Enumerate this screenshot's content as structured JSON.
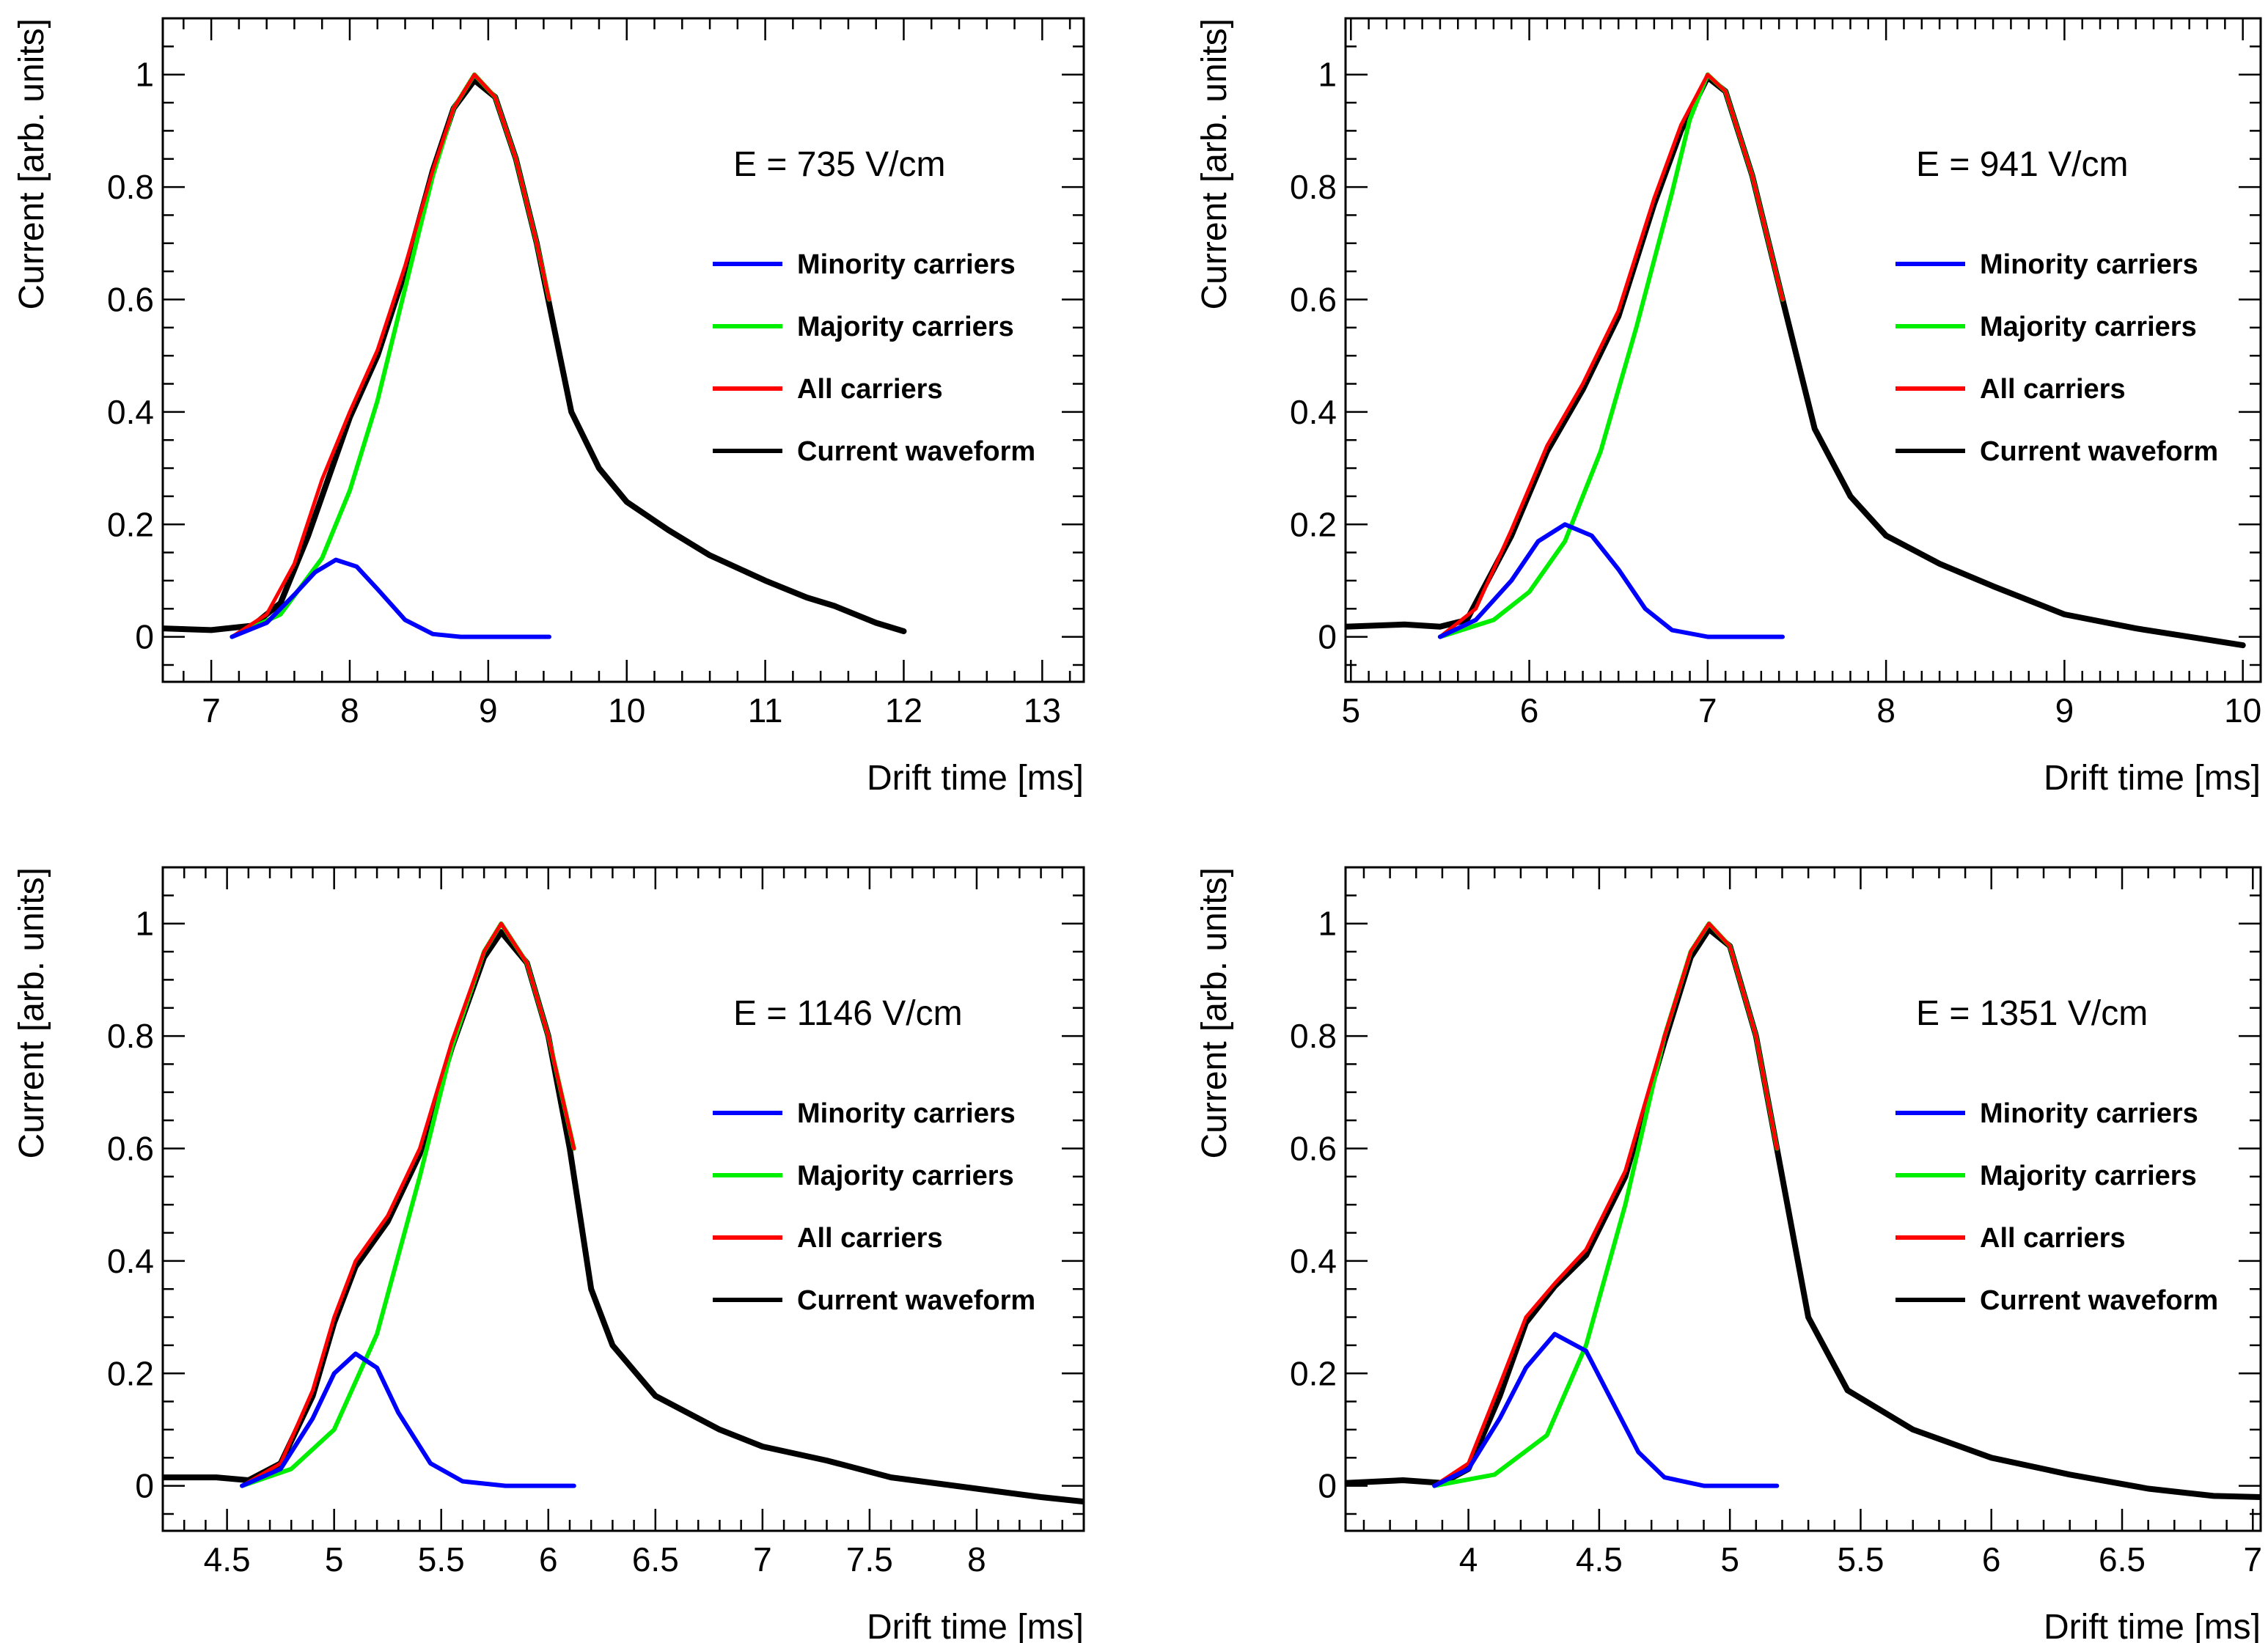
{
  "chart_data": [
    {
      "type": "line",
      "annotation": "E = 735 V/cm",
      "xlabel": "Drift time [ms]",
      "ylabel": "Current [arb. units]",
      "xlim": [
        6.65,
        13.3
      ],
      "ylim": [
        -0.08,
        1.1
      ],
      "x_ticks": [
        7,
        8,
        9,
        10,
        11,
        12,
        13
      ],
      "x_tick_labels": [
        "7",
        "8",
        "9",
        "10",
        "11",
        "12",
        "13"
      ],
      "y_ticks": [
        0,
        0.2,
        0.4,
        0.6,
        0.8,
        1
      ],
      "y_tick_labels": [
        "0",
        "0.2",
        "0.4",
        "0.6",
        "0.8",
        "1"
      ],
      "series": [
        {
          "name": "Minority carriers",
          "color": "#0000ff",
          "x": [
            7.15,
            7.4,
            7.6,
            7.75,
            7.9,
            8.05,
            8.2,
            8.4,
            8.6,
            8.8,
            9.0,
            9.2,
            9.44
          ],
          "y": [
            0.0,
            0.025,
            0.075,
            0.115,
            0.137,
            0.125,
            0.085,
            0.03,
            0.005,
            0.0,
            0.0,
            0.0,
            0.0
          ]
        },
        {
          "name": "Majority carriers",
          "color": "#00ee00",
          "x": [
            7.15,
            7.5,
            7.8,
            8.0,
            8.2,
            8.4,
            8.6,
            8.75,
            8.9,
            9.05,
            9.2,
            9.35,
            9.44
          ],
          "y": [
            0.0,
            0.04,
            0.14,
            0.26,
            0.42,
            0.62,
            0.82,
            0.94,
            1.0,
            0.96,
            0.85,
            0.7,
            0.6
          ]
        },
        {
          "name": "All carriers",
          "color": "#ff0000",
          "x": [
            7.15,
            7.4,
            7.6,
            7.8,
            8.0,
            8.2,
            8.4,
            8.6,
            8.75,
            8.9,
            9.05,
            9.2,
            9.35,
            9.44
          ],
          "y": [
            0.0,
            0.04,
            0.13,
            0.28,
            0.4,
            0.51,
            0.66,
            0.83,
            0.94,
            1.0,
            0.96,
            0.85,
            0.7,
            0.6
          ]
        },
        {
          "name": "Current waveform",
          "color": "#000000",
          "x": [
            6.65,
            7.0,
            7.3,
            7.5,
            7.7,
            8.0,
            8.2,
            8.4,
            8.6,
            8.75,
            8.9,
            9.05,
            9.2,
            9.35,
            9.45,
            9.6,
            9.8,
            10.0,
            10.3,
            10.6,
            11.0,
            11.3,
            11.5,
            11.8,
            12.0
          ],
          "y": [
            0.015,
            0.012,
            0.02,
            0.06,
            0.18,
            0.39,
            0.5,
            0.65,
            0.83,
            0.94,
            0.99,
            0.96,
            0.85,
            0.7,
            0.58,
            0.4,
            0.3,
            0.24,
            0.19,
            0.145,
            0.1,
            0.07,
            0.055,
            0.025,
            0.01
          ]
        }
      ]
    },
    {
      "type": "line",
      "annotation": "E = 941 V/cm",
      "xlabel": "Drift time [ms]",
      "ylabel": "Current [arb. units]",
      "xlim": [
        4.97,
        10.1
      ],
      "ylim": [
        -0.08,
        1.1
      ],
      "x_ticks": [
        5,
        6,
        7,
        8,
        9,
        10
      ],
      "x_tick_labels": [
        "5",
        "6",
        "7",
        "8",
        "9",
        "10"
      ],
      "y_ticks": [
        0,
        0.2,
        0.4,
        0.6,
        0.8,
        1
      ],
      "y_tick_labels": [
        "0",
        "0.2",
        "0.4",
        "0.6",
        "0.8",
        "1"
      ],
      "series": [
        {
          "name": "Minority carriers",
          "color": "#0000ff",
          "x": [
            5.5,
            5.7,
            5.9,
            6.05,
            6.2,
            6.35,
            6.5,
            6.65,
            6.8,
            7.0,
            7.2,
            7.42
          ],
          "y": [
            0.0,
            0.03,
            0.1,
            0.17,
            0.2,
            0.18,
            0.12,
            0.05,
            0.012,
            0.0,
            0.0,
            0.0
          ]
        },
        {
          "name": "Majority carriers",
          "color": "#00ee00",
          "x": [
            5.5,
            5.8,
            6.0,
            6.2,
            6.4,
            6.6,
            6.8,
            6.9,
            7.0,
            7.1,
            7.25,
            7.42
          ],
          "y": [
            0.0,
            0.03,
            0.08,
            0.17,
            0.33,
            0.55,
            0.79,
            0.92,
            1.0,
            0.97,
            0.82,
            0.6
          ]
        },
        {
          "name": "All carriers",
          "color": "#ff0000",
          "x": [
            5.5,
            5.7,
            5.9,
            6.1,
            6.3,
            6.5,
            6.7,
            6.85,
            7.0,
            7.1,
            7.25,
            7.42
          ],
          "y": [
            0.0,
            0.05,
            0.19,
            0.34,
            0.45,
            0.58,
            0.78,
            0.91,
            1.0,
            0.97,
            0.82,
            0.6
          ]
        },
        {
          "name": "Current waveform",
          "color": "#000000",
          "x": [
            4.97,
            5.3,
            5.5,
            5.65,
            5.9,
            6.1,
            6.3,
            6.5,
            6.7,
            6.85,
            7.0,
            7.1,
            7.25,
            7.42,
            7.6,
            7.8,
            8.0,
            8.3,
            8.6,
            9.0,
            9.4,
            9.7,
            10.0
          ],
          "y": [
            0.018,
            0.022,
            0.018,
            0.03,
            0.18,
            0.33,
            0.44,
            0.57,
            0.77,
            0.9,
            0.995,
            0.97,
            0.82,
            0.6,
            0.37,
            0.25,
            0.18,
            0.13,
            0.09,
            0.04,
            0.015,
            0.0,
            -0.015
          ]
        }
      ]
    },
    {
      "type": "line",
      "annotation": "E = 1146 V/cm",
      "xlabel": "Drift time [ms]",
      "ylabel": "Current [arb. units]",
      "xlim": [
        4.2,
        8.5
      ],
      "ylim": [
        -0.08,
        1.1
      ],
      "x_ticks": [
        4.5,
        5,
        5.5,
        6,
        6.5,
        7,
        7.5,
        8
      ],
      "x_tick_labels": [
        "4.5",
        "5",
        "5.5",
        "6",
        "6.5",
        "7",
        "7.5",
        "8"
      ],
      "y_ticks": [
        0,
        0.2,
        0.4,
        0.6,
        0.8,
        1
      ],
      "y_tick_labels": [
        "0",
        "0.2",
        "0.4",
        "0.6",
        "0.8",
        "1"
      ],
      "series": [
        {
          "name": "Minority carriers",
          "color": "#0000ff",
          "x": [
            4.57,
            4.75,
            4.9,
            5.0,
            5.1,
            5.2,
            5.3,
            5.45,
            5.6,
            5.8,
            6.0,
            6.12
          ],
          "y": [
            0.0,
            0.03,
            0.12,
            0.2,
            0.235,
            0.21,
            0.13,
            0.04,
            0.008,
            0.0,
            0.0,
            0.0
          ]
        },
        {
          "name": "Majority carriers",
          "color": "#00ee00",
          "x": [
            4.57,
            4.8,
            5.0,
            5.2,
            5.4,
            5.55,
            5.7,
            5.78,
            5.9,
            6.0,
            6.12
          ],
          "y": [
            0.0,
            0.03,
            0.1,
            0.27,
            0.55,
            0.78,
            0.95,
            1.0,
            0.93,
            0.8,
            0.6
          ]
        },
        {
          "name": "All carriers",
          "color": "#ff0000",
          "x": [
            4.57,
            4.75,
            4.9,
            5.0,
            5.1,
            5.25,
            5.4,
            5.55,
            5.7,
            5.78,
            5.9,
            6.0,
            6.12
          ],
          "y": [
            0.0,
            0.04,
            0.17,
            0.3,
            0.4,
            0.48,
            0.6,
            0.79,
            0.95,
            1.0,
            0.93,
            0.8,
            0.6
          ]
        },
        {
          "name": "Current waveform",
          "color": "#000000",
          "x": [
            4.2,
            4.45,
            4.6,
            4.75,
            4.9,
            5.0,
            5.1,
            5.25,
            5.4,
            5.55,
            5.7,
            5.78,
            5.9,
            6.0,
            6.1,
            6.2,
            6.3,
            6.5,
            6.8,
            7.0,
            7.3,
            7.6,
            8.0,
            8.3,
            8.5
          ],
          "y": [
            0.015,
            0.015,
            0.01,
            0.04,
            0.16,
            0.29,
            0.39,
            0.47,
            0.59,
            0.78,
            0.94,
            0.985,
            0.93,
            0.8,
            0.6,
            0.35,
            0.25,
            0.16,
            0.1,
            0.07,
            0.045,
            0.015,
            -0.005,
            -0.02,
            -0.028
          ]
        }
      ]
    },
    {
      "type": "line",
      "annotation": "E = 1351 V/cm",
      "xlabel": "Drift time [ms]",
      "ylabel": "Current [arb. units]",
      "xlim": [
        3.53,
        7.03
      ],
      "ylim": [
        -0.08,
        1.1
      ],
      "x_ticks": [
        4,
        4.5,
        5,
        5.5,
        6,
        6.5,
        7
      ],
      "x_tick_labels": [
        "4",
        "4.5",
        "5",
        "5.5",
        "6",
        "6.5",
        "7"
      ],
      "y_ticks": [
        0,
        0.2,
        0.4,
        0.6,
        0.8,
        1
      ],
      "y_tick_labels": [
        "0",
        "0.2",
        "0.4",
        "0.6",
        "0.8",
        "1"
      ],
      "series": [
        {
          "name": "Minority carriers",
          "color": "#0000ff",
          "x": [
            3.87,
            4.0,
            4.12,
            4.22,
            4.33,
            4.45,
            4.55,
            4.65,
            4.75,
            4.9,
            5.05,
            5.18
          ],
          "y": [
            0.0,
            0.03,
            0.12,
            0.21,
            0.27,
            0.24,
            0.15,
            0.06,
            0.015,
            0.0,
            0.0,
            0.0
          ]
        },
        {
          "name": "Majority carriers",
          "color": "#00ee00",
          "x": [
            3.87,
            4.1,
            4.3,
            4.45,
            4.6,
            4.75,
            4.85,
            4.92,
            5.0,
            5.1,
            5.18
          ],
          "y": [
            0.0,
            0.02,
            0.09,
            0.25,
            0.5,
            0.8,
            0.95,
            1.0,
            0.96,
            0.8,
            0.6
          ]
        },
        {
          "name": "All carriers",
          "color": "#ff0000",
          "x": [
            3.87,
            4.0,
            4.12,
            4.22,
            4.33,
            4.45,
            4.6,
            4.75,
            4.85,
            4.92,
            5.0,
            5.1,
            5.18
          ],
          "y": [
            0.0,
            0.04,
            0.18,
            0.3,
            0.36,
            0.42,
            0.56,
            0.8,
            0.95,
            1.0,
            0.96,
            0.8,
            0.6
          ]
        },
        {
          "name": "Current waveform",
          "color": "#000000",
          "x": [
            3.53,
            3.75,
            3.9,
            4.0,
            4.12,
            4.22,
            4.33,
            4.45,
            4.6,
            4.75,
            4.85,
            4.92,
            5.0,
            5.1,
            5.18,
            5.3,
            5.45,
            5.7,
            6.0,
            6.3,
            6.6,
            6.85,
            7.03
          ],
          "y": [
            0.005,
            0.01,
            0.005,
            0.03,
            0.16,
            0.29,
            0.355,
            0.41,
            0.55,
            0.79,
            0.94,
            0.99,
            0.96,
            0.8,
            0.6,
            0.3,
            0.17,
            0.1,
            0.05,
            0.02,
            -0.005,
            -0.018,
            -0.02
          ]
        }
      ]
    }
  ]
}
